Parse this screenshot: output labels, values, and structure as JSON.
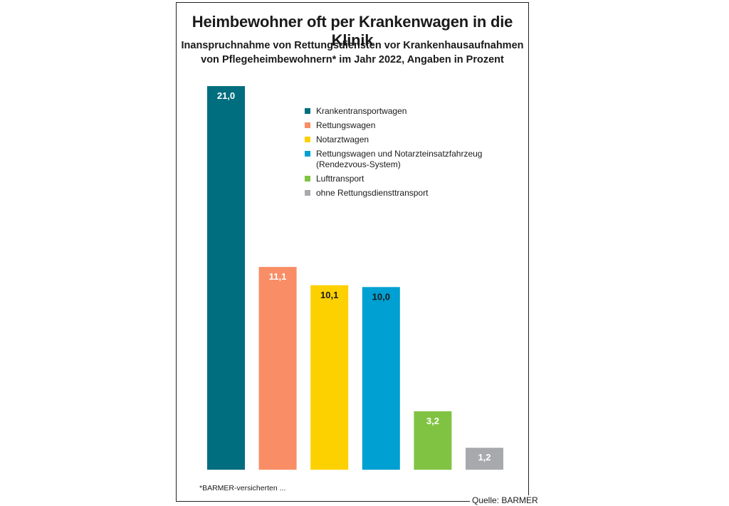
{
  "header": {
    "title": "Heimbewohner oft per Krankenwagen in die Klinik",
    "subtitle_line1": "Inanspruchnahme von Rettungsdiensten vor Krankenhausaufnahmen",
    "subtitle_line2": "von Pflegeheimbewohnern* im Jahr 2022, Angaben in Prozent"
  },
  "chart_data": {
    "type": "bar",
    "title": "Heimbewohner oft per Krankenwagen in die Klinik",
    "subtitle": "Inanspruchnahme von Rettungsdiensten vor Krankenhausaufnahmen von Pflegeheimbewohnern* im Jahr 2022, Angaben in Prozent",
    "categories": [
      "Krankentransportwagen",
      "Rettungswagen",
      "Notarztwagen",
      "Rettungswagen und Notarzteinsatzfahrzeug (Rendezvous-System)",
      "Lufttransport",
      "ohne Rettungsdiensttransport"
    ],
    "values": [
      21.0,
      11.1,
      10.1,
      10.0,
      3.2,
      1.2
    ],
    "value_labels": [
      "21,0",
      "11,1",
      "10,1",
      "10,0",
      "3,2",
      "1,2"
    ],
    "colors": [
      "#006e7f",
      "#f98d65",
      "#fdd000",
      "#00a0d2",
      "#80c342",
      "#a7a9ac"
    ],
    "label_colors": [
      "#ffffff",
      "#ffffff",
      "#1a1a1a",
      "#1a1a1a",
      "#ffffff",
      "#ffffff"
    ],
    "xlabel": "",
    "ylabel": "",
    "ylim": [
      0,
      21.0
    ],
    "grid": false,
    "legend_position": "top-right"
  },
  "legend": {
    "items": [
      {
        "lines": [
          "Krankentransportwagen"
        ],
        "color": "#006e7f"
      },
      {
        "lines": [
          "Rettungswagen"
        ],
        "color": "#f98d65"
      },
      {
        "lines": [
          "Notarztwagen"
        ],
        "color": "#fdd000"
      },
      {
        "lines": [
          "Rettungswagen und Notarzteinsatzfahrzeug",
          "(Rendezvous-System)"
        ],
        "color": "#00a0d2"
      },
      {
        "lines": [
          "Lufttransport"
        ],
        "color": "#80c342"
      },
      {
        "lines": [
          "ohne Rettungsdiensttransport"
        ],
        "color": "#a7a9ac"
      }
    ]
  },
  "footnote": "*BARMER-versicherten ...",
  "source": "Quelle: BARMER"
}
